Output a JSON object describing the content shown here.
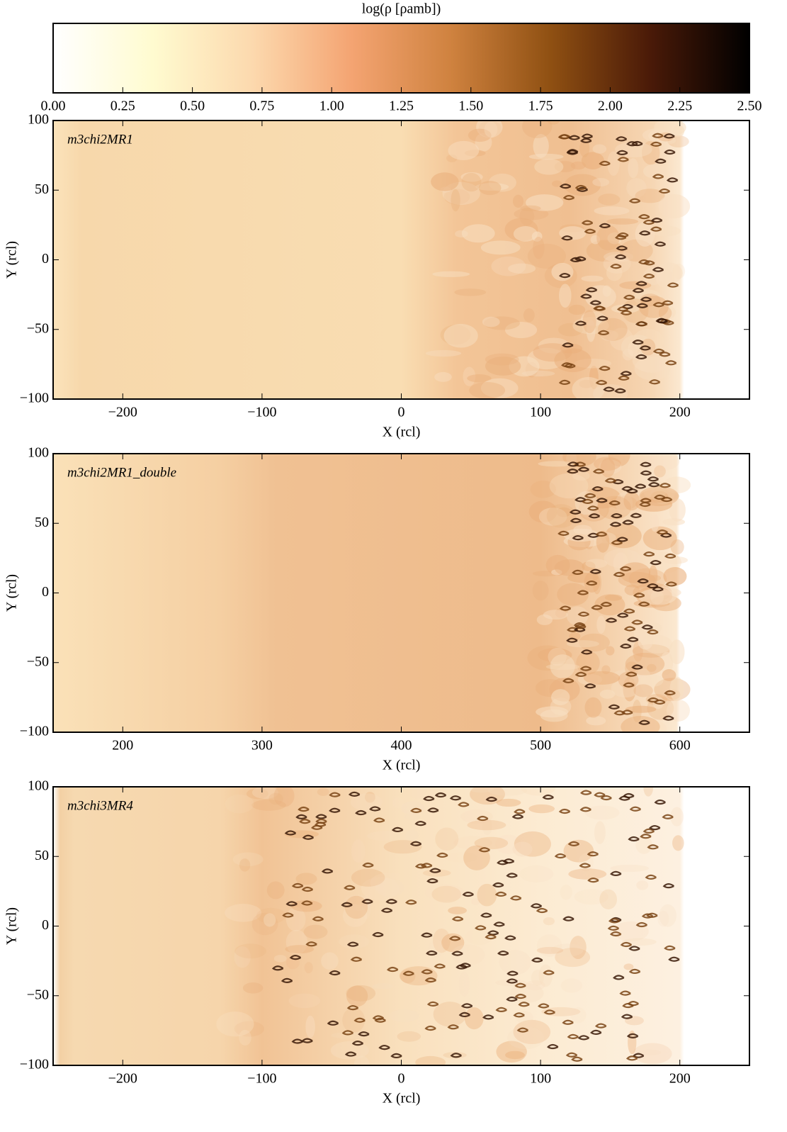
{
  "chart_data": [
    {
      "type": "colorbar",
      "title": "log(ρ [ρamb])",
      "xlim": [
        0,
        2.5
      ],
      "xticks": [
        {
          "value": 0,
          "label": "0.00"
        },
        {
          "value": 0.25,
          "label": "0.25"
        },
        {
          "value": 0.5,
          "label": "0.50"
        },
        {
          "value": 0.75,
          "label": "0.75"
        },
        {
          "value": 1,
          "label": "1.00"
        },
        {
          "value": 1.25,
          "label": "1.25"
        },
        {
          "value": 1.5,
          "label": "1.50"
        },
        {
          "value": 1.75,
          "label": "1.75"
        },
        {
          "value": 2,
          "label": "2.00"
        },
        {
          "value": 2.25,
          "label": "2.25"
        },
        {
          "value": 2.5,
          "label": "2.50"
        }
      ],
      "colors": [
        "#ffffff",
        "#fffbd0",
        "#fcd9ae",
        "#f4a472",
        "#cf823f",
        "#8f5012",
        "#4a1a08",
        "#000000"
      ]
    },
    {
      "type": "image",
      "annotation": "m3chi2MR1",
      "xlabel": "X (rcl)",
      "ylabel": "Y (rcl)",
      "xlim": [
        -250,
        250
      ],
      "ylim": [
        -100,
        100
      ],
      "xticks": [
        {
          "value": -200,
          "label": "−200"
        },
        {
          "value": -100,
          "label": "−100"
        },
        0,
        100,
        200
      ],
      "yticks": [
        {
          "value": -100,
          "label": "−100"
        },
        {
          "value": -50,
          "label": "−50"
        },
        0,
        50,
        100
      ]
    },
    {
      "type": "image",
      "annotation": "m3chi2MR1_double",
      "xlabel": "X (rcl)",
      "ylabel": "Y (rcl)",
      "xlim": [
        150,
        650
      ],
      "ylim": [
        -100,
        100
      ],
      "xticks": [
        200,
        300,
        400,
        500,
        600
      ],
      "yticks": [
        {
          "value": -100,
          "label": "−100"
        },
        {
          "value": -50,
          "label": "−50"
        },
        0,
        50,
        100
      ]
    },
    {
      "type": "image",
      "annotation": "m3chi3MR4",
      "xlabel": "X (rcl)",
      "ylabel": "Y (rcl)",
      "xlim": [
        -250,
        250
      ],
      "ylim": [
        -100,
        100
      ],
      "xticks": [
        {
          "value": -200,
          "label": "−200"
        },
        {
          "value": -100,
          "label": "−100"
        },
        0,
        100,
        200
      ],
      "yticks": [
        {
          "value": -100,
          "label": "−100"
        },
        {
          "value": -50,
          "label": "−50"
        },
        0,
        50,
        100
      ]
    }
  ]
}
